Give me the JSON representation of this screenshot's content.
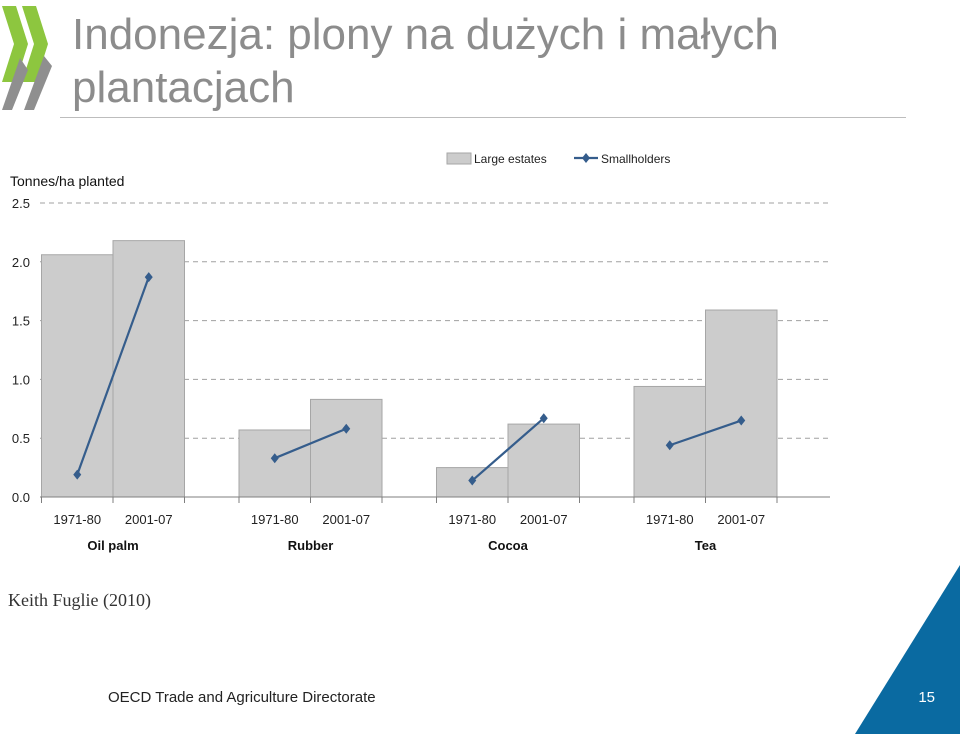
{
  "title": "Indonezja: plony na dużych i małych plantacjach",
  "source": "Keith Fuglie (2010)",
  "footer": {
    "organization": "OECD Trade and Agriculture Directorate",
    "page_number": "15"
  },
  "colors": {
    "bar_fill": "#cccccc",
    "bar_stroke": "#a6a6a6",
    "line": "#355d8c",
    "logo_green": "#8dc63f",
    "logo_grey": "#8f8f8f",
    "corner_blue": "#0a6aa1",
    "title": "#8c8c8c"
  },
  "chart_data": {
    "type": "bar",
    "ylabel": "Tonnes/ha planted",
    "ylim": [
      0,
      2.5
    ],
    "yticks": [
      "0.0",
      "0.5",
      "1.0",
      "1.5",
      "2.0",
      "2.5"
    ],
    "grid": "dashed horizontal",
    "legend_position": "top",
    "groups": [
      "Oil palm",
      "Rubber",
      "Cocoa",
      "Tea"
    ],
    "periods": [
      "1971-80",
      "2001-07"
    ],
    "series": [
      {
        "name": "Large estates",
        "kind": "bar",
        "values": [
          [
            2.06,
            2.18
          ],
          [
            0.57,
            0.83
          ],
          [
            0.25,
            0.62
          ],
          [
            0.94,
            1.59
          ]
        ]
      },
      {
        "name": "Smallholders",
        "kind": "line",
        "values": [
          [
            0.19,
            1.87
          ],
          [
            0.33,
            0.58
          ],
          [
            0.14,
            0.67
          ],
          [
            0.44,
            0.65
          ]
        ]
      }
    ]
  }
}
